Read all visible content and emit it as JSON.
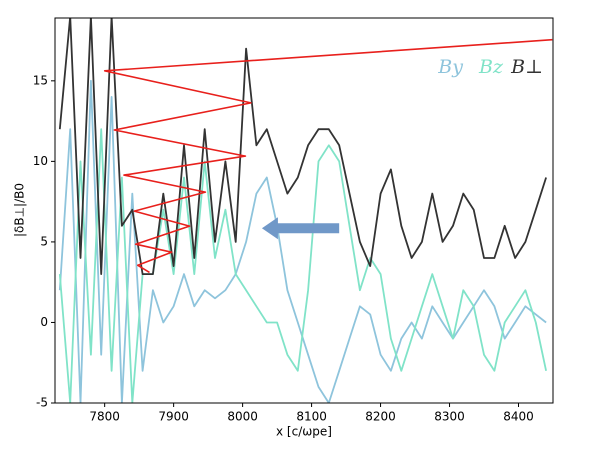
{
  "chart_data": {
    "type": "line",
    "xlabel": "x [c/ωpe]",
    "ylabel": "|δB⊥|/B0",
    "xlim": [
      7728,
      8450
    ],
    "ylim": [
      -5,
      18.9
    ],
    "xticks": [
      7800,
      7900,
      8000,
      8100,
      8200,
      8300,
      8400
    ],
    "yticks": [
      -5,
      0,
      5,
      10,
      15
    ],
    "legend": "upper right",
    "x": [
      7735,
      7750,
      7765,
      7780,
      7795,
      7810,
      7825,
      7840,
      7855,
      7870,
      7885,
      7900,
      7915,
      7930,
      7945,
      7960,
      7975,
      7990,
      8005,
      8020,
      8035,
      8050,
      8065,
      8080,
      8095,
      8110,
      8125,
      8140,
      8155,
      8170,
      8185,
      8200,
      8215,
      8230,
      8245,
      8260,
      8275,
      8290,
      8305,
      8320,
      8335,
      8350,
      8365,
      8380,
      8395,
      8410,
      8425,
      8440
    ],
    "series": [
      {
        "name": "By",
        "color": "#8ec4dc",
        "values": [
          2,
          12,
          -5,
          15,
          -2,
          14,
          -5,
          8,
          -3,
          2,
          0,
          1,
          3,
          1,
          2,
          1.5,
          2,
          3,
          5,
          8,
          9,
          6,
          2,
          0,
          -2,
          -4,
          -5,
          -3,
          -1,
          1,
          0.5,
          -2,
          -3,
          -1,
          0,
          -1,
          1,
          0,
          -1,
          0,
          1,
          2,
          1,
          -1,
          0,
          1,
          0.5,
          0
        ]
      },
      {
        "name": "Bz",
        "color": "#80e3c8",
        "values": [
          3,
          -5,
          10,
          -2,
          12,
          -3,
          9,
          -5,
          3,
          3,
          7,
          3,
          9,
          3,
          10,
          4,
          7,
          3,
          2,
          1,
          0,
          0,
          -2,
          -3,
          2,
          10,
          11,
          10,
          6,
          2,
          4,
          3,
          -1,
          -3,
          -1,
          1,
          3,
          1,
          -1,
          2,
          1,
          -2,
          -3,
          0,
          1,
          2,
          0,
          -3
        ]
      },
      {
        "name": "B⊥",
        "color": "#333333",
        "values": [
          12,
          19,
          4,
          19,
          3,
          19,
          6,
          7,
          3,
          3,
          8,
          3.5,
          11,
          4,
          12,
          5,
          10,
          5,
          17,
          11,
          12,
          10,
          8,
          9,
          11,
          12,
          12,
          11,
          8,
          5,
          3.5,
          8,
          9.5,
          6,
          4,
          5,
          8,
          5,
          6,
          8,
          7,
          4,
          4,
          6,
          4,
          5,
          7,
          9
        ]
      }
    ],
    "zigzag": {
      "color": "#e8201c",
      "x": [
        8449,
        7800,
        8012,
        7814,
        8004,
        7828,
        7946,
        7843,
        7923,
        7845,
        7897,
        7848,
        7865
      ],
      "y": [
        17.55,
        15.62,
        13.63,
        11.95,
        10.33,
        9.15,
        8.09,
        6.91,
        5.98,
        4.86,
        4.36,
        3.55,
        3.11
      ]
    },
    "arrow": {
      "color": "#7098c8",
      "x": [
        8140,
        8028
      ],
      "y": [
        5.85,
        5.85
      ]
    }
  }
}
